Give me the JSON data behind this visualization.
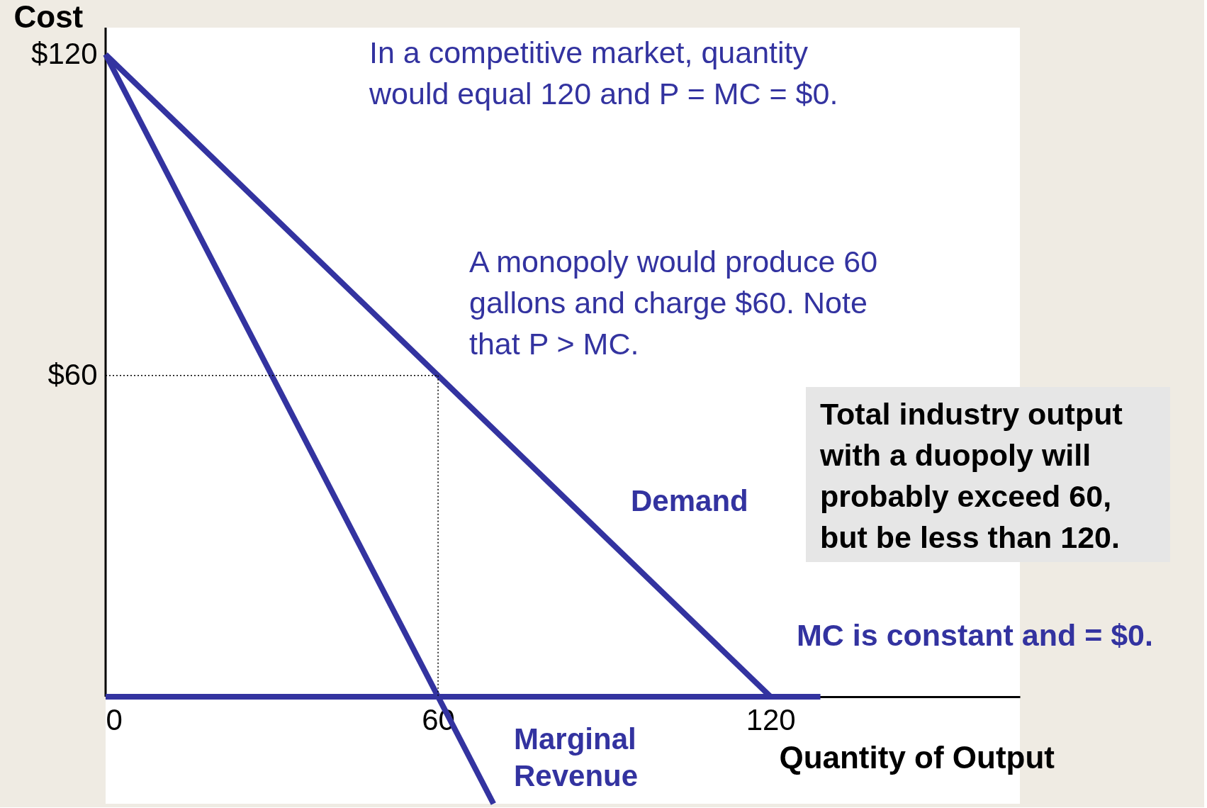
{
  "chart_data": {
    "type": "line",
    "ylabel": "Cost",
    "xlabel": "Quantity of Output",
    "xlim": [
      0,
      165
    ],
    "ylim": [
      -20,
      125
    ],
    "xticks": [
      0,
      60,
      120
    ],
    "yticks": [
      {
        "value": 120,
        "label": "$120"
      },
      {
        "value": 60,
        "label": "$60"
      }
    ],
    "grid": false,
    "line_style": "solid",
    "series": [
      {
        "name": "Demand",
        "color": "#3333a0",
        "x": [
          0,
          120
        ],
        "values": [
          120,
          0
        ]
      },
      {
        "name": "Marginal Revenue",
        "color": "#3333a0",
        "x": [
          0,
          70
        ],
        "values": [
          120,
          -20
        ]
      },
      {
        "color": "#3333a0",
        "x": [
          0,
          129
        ],
        "values": [
          0,
          0
        ]
      },
      {
        "color": "#000000",
        "x": [
          0,
          60
        ],
        "values": [
          60,
          60
        ],
        "line_style": "dotted"
      },
      {
        "color": "#000000",
        "x": [
          60,
          60
        ],
        "values": [
          60,
          0
        ],
        "line_style": "dotted"
      }
    ],
    "annotations": [
      "In a competitive market, quantity\nwould equal 120 and P = MC = $0.",
      "A monopoly would produce 60\ngallons and charge $60.  Note\nthat P > MC.",
      "MC is constant and = $0.",
      "Total industry output\nwith a duopoly will\nprobably exceed 60,\nbut be less than 120."
    ]
  }
}
